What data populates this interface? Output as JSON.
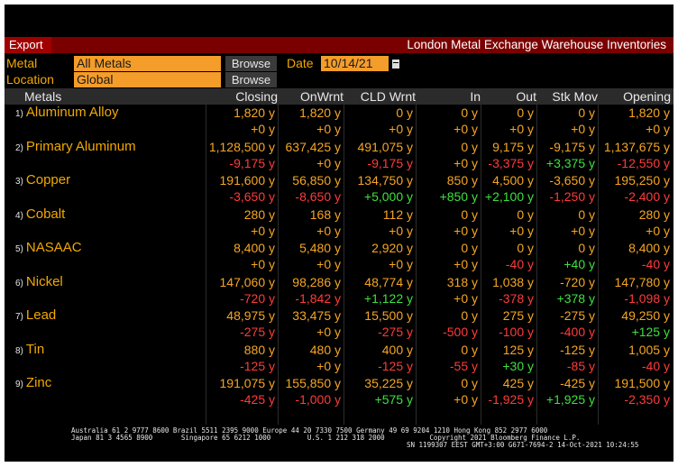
{
  "toolbar": {
    "export_label": "Export",
    "title": "London Metal Exchange Warehouse Inventories"
  },
  "filters": {
    "metal_label": "Metal",
    "metal_value": "All Metals",
    "metal_browse": "Browse",
    "date_label": "Date",
    "date_value": "10/14/21",
    "location_label": "Location",
    "location_value": "Global",
    "location_browse": "Browse"
  },
  "columns": [
    "Metals",
    "Closing",
    "OnWrnt",
    "CLD Wrnt",
    "In",
    "Out",
    "Stk Mov",
    "Opening"
  ],
  "rows": [
    {
      "num": "1)",
      "name": "Aluminum Alloy",
      "values": [
        "1,820 y",
        "1,820 y",
        "0 y",
        "0 y",
        "0 y",
        "0 y",
        "1,820 y"
      ],
      "changes": [
        "+0 y",
        "+0 y",
        "+0 y",
        "+0 y",
        "+0 y",
        "+0 y",
        "+0 y"
      ],
      "change_colors": [
        "o",
        "o",
        "o",
        "o",
        "o",
        "o",
        "o"
      ]
    },
    {
      "num": "2)",
      "name": "Primary Aluminum",
      "values": [
        "1,128,500 y",
        "637,425 y",
        "491,075 y",
        "0 y",
        "9,175 y",
        "-9,175 y",
        "1,137,675 y"
      ],
      "changes": [
        "-9,175 y",
        "+0 y",
        "-9,175 y",
        "+0 y",
        "-3,375 y",
        "+3,375 y",
        "-12,550 y"
      ],
      "change_colors": [
        "r",
        "o",
        "r",
        "o",
        "r",
        "g",
        "r"
      ]
    },
    {
      "num": "3)",
      "name": "Copper",
      "values": [
        "191,600 y",
        "56,850 y",
        "134,750 y",
        "850 y",
        "4,500 y",
        "-3,650 y",
        "195,250 y"
      ],
      "changes": [
        "-3,650 y",
        "-8,650 y",
        "+5,000 y",
        "+850 y",
        "+2,100 y",
        "-1,250 y",
        "-2,400 y"
      ],
      "change_colors": [
        "r",
        "r",
        "g",
        "g",
        "g",
        "r",
        "r"
      ]
    },
    {
      "num": "4)",
      "name": "Cobalt",
      "values": [
        "280 y",
        "168 y",
        "112 y",
        "0 y",
        "0 y",
        "0 y",
        "280 y"
      ],
      "changes": [
        "+0 y",
        "+0 y",
        "+0 y",
        "+0 y",
        "+0 y",
        "+0 y",
        "+0 y"
      ],
      "change_colors": [
        "o",
        "o",
        "o",
        "o",
        "o",
        "o",
        "o"
      ]
    },
    {
      "num": "5)",
      "name": "NASAAC",
      "values": [
        "8,400 y",
        "5,480 y",
        "2,920 y",
        "0 y",
        "0 y",
        "0 y",
        "8,400 y"
      ],
      "changes": [
        "+0 y",
        "+0 y",
        "+0 y",
        "+0 y",
        "-40 y",
        "+40 y",
        "-40 y"
      ],
      "change_colors": [
        "o",
        "o",
        "o",
        "o",
        "r",
        "g",
        "r"
      ]
    },
    {
      "num": "6)",
      "name": "Nickel",
      "values": [
        "147,060 y",
        "98,286 y",
        "48,774 y",
        "318 y",
        "1,038 y",
        "-720 y",
        "147,780 y"
      ],
      "changes": [
        "-720 y",
        "-1,842 y",
        "+1,122 y",
        "+0 y",
        "-378 y",
        "+378 y",
        "-1,098 y"
      ],
      "change_colors": [
        "r",
        "r",
        "g",
        "o",
        "r",
        "g",
        "r"
      ]
    },
    {
      "num": "7)",
      "name": "Lead",
      "values": [
        "48,975 y",
        "33,475 y",
        "15,500 y",
        "0 y",
        "275 y",
        "-275 y",
        "49,250 y"
      ],
      "changes": [
        "-275 y",
        "+0 y",
        "-275 y",
        "-500 y",
        "-100 y",
        "-400 y",
        "+125 y"
      ],
      "change_colors": [
        "r",
        "o",
        "r",
        "r",
        "r",
        "r",
        "g"
      ]
    },
    {
      "num": "8)",
      "name": "Tin",
      "values": [
        "880 y",
        "480 y",
        "400 y",
        "0 y",
        "125 y",
        "-125 y",
        "1,005 y"
      ],
      "changes": [
        "-125 y",
        "+0 y",
        "-125 y",
        "-55 y",
        "+30 y",
        "-85 y",
        "-40 y"
      ],
      "change_colors": [
        "r",
        "o",
        "r",
        "r",
        "g",
        "r",
        "r"
      ]
    },
    {
      "num": "9)",
      "name": "Zinc",
      "values": [
        "191,075 y",
        "155,850 y",
        "35,225 y",
        "0 y",
        "425 y",
        "-425 y",
        "191,500 y"
      ],
      "changes": [
        "-425 y",
        "-1,000 y",
        "+575 y",
        "+0 y",
        "-1,925 y",
        "+1,925 y",
        "-2,350 y"
      ],
      "change_colors": [
        "r",
        "r",
        "g",
        "o",
        "r",
        "g",
        "r"
      ]
    }
  ],
  "footer": {
    "line1": "Australia 61 2 9777 8600 Brazil 5511 2395 9000 Europe 44 20 7330 7500 Germany 49 69 9204 1210 Hong Kong 852 2977 6000",
    "line2": "Japan 81 3 4565 8900       Singapore 65 6212 1000         U.S. 1 212 318 2000           Copyright 2021 Bloomberg Finance L.P.",
    "line3": "SN 1199307 EEST GMT+3:00 G671-7694-2 14-Oct-2021 10:24:55"
  },
  "colors": {
    "orange": "#f5a623",
    "red": "#ff3b3b",
    "green": "#3fe03f",
    "titlebar": "#7a0000",
    "field": "#f59d2a"
  }
}
